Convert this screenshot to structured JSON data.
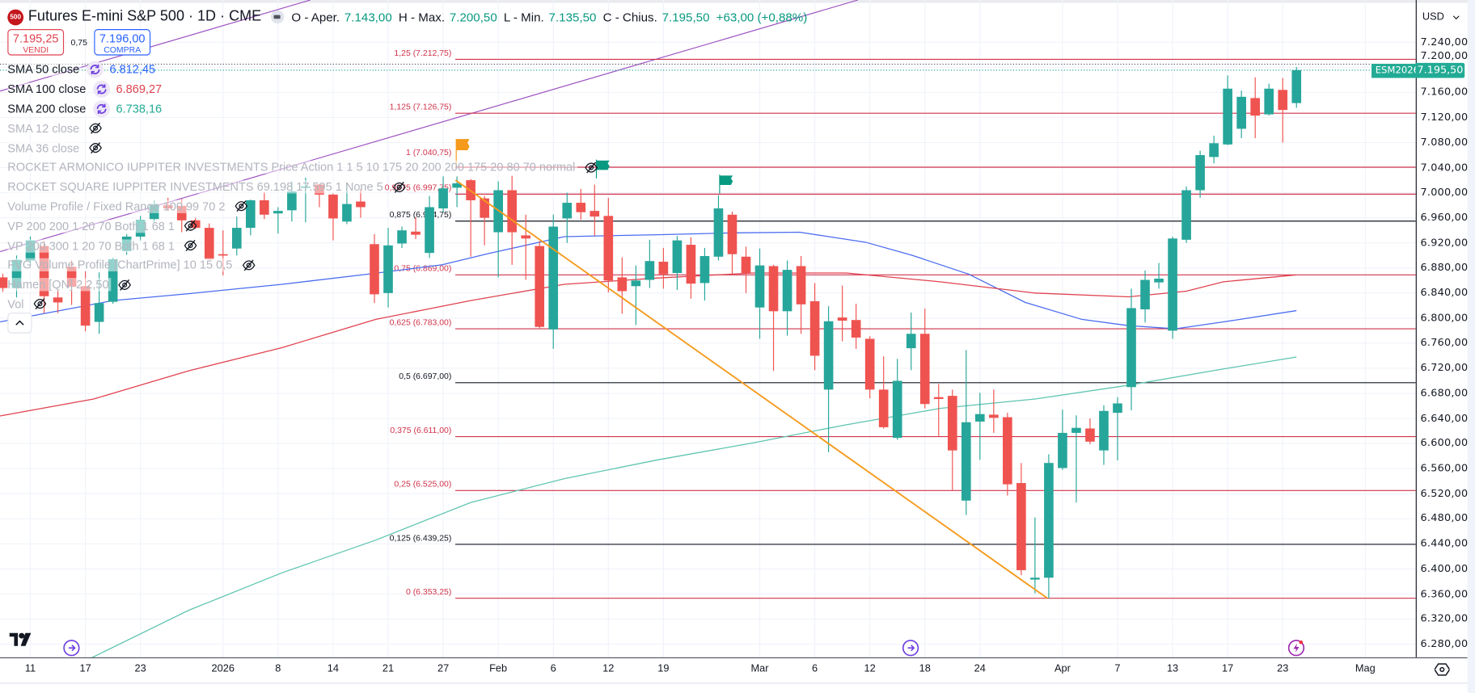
{
  "header": {
    "logo": "500",
    "title": "Futures E-mini S&P 500 · 1D · CME",
    "ohlc": [
      {
        "label": "O - Aper.",
        "value": "7.143,00"
      },
      {
        "label": "H - Max.",
        "value": "7.200,50"
      },
      {
        "label": "L - Min.",
        "value": "7.135,50"
      },
      {
        "label": "C - Chius.",
        "value": "7.195,50"
      }
    ],
    "change": "+63,00 (+0,88%)"
  },
  "trade": {
    "sell_price": "7.195,25",
    "sell_label": "VENDI",
    "spread": "0,75",
    "buy_price": "7.196,00",
    "buy_label": "COMPRA"
  },
  "indicators": [
    {
      "name": "SMA 50 close",
      "value": "6.812,45",
      "color": "#2962ff",
      "visible": true
    },
    {
      "name": "SMA 100 close",
      "value": "6.869,27",
      "color": "#e0424f",
      "visible": true
    },
    {
      "name": "SMA 200 close",
      "value": "6.738,16",
      "color": "#22ab94",
      "visible": true
    },
    {
      "name": "SMA 12 close",
      "visible": false
    },
    {
      "name": "SMA 36 close",
      "visible": false
    },
    {
      "name": "ROCKET ARMONICO IUPPITER INVESTMENTS Price Action 1 1 5 10 175 20 200 200 175 20 80 70 normal",
      "visible": false
    },
    {
      "name": "ROCKET SQUARE IUPPITER INVESTMENTS 69.198 17.595 1 None 5",
      "visible": false
    },
    {
      "name": "Volume Profile / Fixed Range 100 99 70 2",
      "visible": false
    },
    {
      "name": "VP 200 200 1 20 70 Both 1 68 1",
      "visible": false
    },
    {
      "name": "VP 200 300 1 20 70 Both 1 68 1",
      "visible": false
    },
    {
      "name": "FVG Volume Profile [ChartPrime] 10 15 0,5",
      "visible": false
    },
    {
      "name": "Hamen [QN] 2 2,50",
      "visible": false
    },
    {
      "name": "Vol",
      "visible": false
    }
  ],
  "price_axis": {
    "currency": "USD",
    "symbol_badge": "ESM2026",
    "last_price_label": "7.195,50",
    "ticks": [
      {
        "value": 7240,
        "label": "7.240,00"
      },
      {
        "value": 7200,
        "label": "7.200,00"
      },
      {
        "value": 7160,
        "label": "7.160,00"
      },
      {
        "value": 7120,
        "label": "7.120,00"
      },
      {
        "value": 7080,
        "label": "7.080,00"
      },
      {
        "value": 7040,
        "label": "7.040,00"
      },
      {
        "value": 7000,
        "label": "7.000,00"
      },
      {
        "value": 6960,
        "label": "6.960,00"
      },
      {
        "value": 6920,
        "label": "6.920,00"
      },
      {
        "value": 6880,
        "label": "6.880,00"
      },
      {
        "value": 6840,
        "label": "6.840,00"
      },
      {
        "value": 6800,
        "label": "6.800,00"
      },
      {
        "value": 6760,
        "label": "6.760,00"
      },
      {
        "value": 6720,
        "label": "6.720,00"
      },
      {
        "value": 6680,
        "label": "6.680,00"
      },
      {
        "value": 6640,
        "label": "6.640,00"
      },
      {
        "value": 6600,
        "label": "6.600,00"
      },
      {
        "value": 6560,
        "label": "6.560,00"
      },
      {
        "value": 6520,
        "label": "6.520,00"
      },
      {
        "value": 6480,
        "label": "6.480,00"
      },
      {
        "value": 6440,
        "label": "6.440,00"
      },
      {
        "value": 6400,
        "label": "6.400,00"
      },
      {
        "value": 6360,
        "label": "6.360,00"
      },
      {
        "value": 6320,
        "label": "6.320,00"
      },
      {
        "value": 6280,
        "label": "6.280,00"
      }
    ]
  },
  "time_axis": {
    "ticks": [
      {
        "label": "11",
        "idx": 2
      },
      {
        "label": "17",
        "idx": 6
      },
      {
        "label": "23",
        "idx": 10
      },
      {
        "label": "2026",
        "idx": 16
      },
      {
        "label": "8",
        "idx": 20
      },
      {
        "label": "14",
        "idx": 24
      },
      {
        "label": "21",
        "idx": 28
      },
      {
        "label": "27",
        "idx": 32
      },
      {
        "label": "Feb",
        "idx": 36
      },
      {
        "label": "6",
        "idx": 40
      },
      {
        "label": "12",
        "idx": 44
      },
      {
        "label": "19",
        "idx": 48
      },
      {
        "label": "Mar",
        "idx": 55
      },
      {
        "label": "6",
        "idx": 59
      },
      {
        "label": "12",
        "idx": 63
      },
      {
        "label": "18",
        "idx": 67
      },
      {
        "label": "24",
        "idx": 71
      },
      {
        "label": "Apr",
        "idx": 77
      },
      {
        "label": "7",
        "idx": 81
      },
      {
        "label": "13",
        "idx": 85
      },
      {
        "label": "17",
        "idx": 89
      },
      {
        "label": "23",
        "idx": 93
      },
      {
        "label": "Mag",
        "idx": 99
      }
    ]
  },
  "fib_levels": [
    {
      "ratio": "1,25",
      "price_label": "7.212,75",
      "price": 7212.75,
      "color": "#d1334b"
    },
    {
      "ratio": "1,125",
      "price_label": "7.126,75",
      "price": 7126.75,
      "color": "#d1334b"
    },
    {
      "ratio": "1",
      "price_label": "7.040,75",
      "price": 7040.75,
      "color": "#d1334b"
    },
    {
      "ratio": "0,9375",
      "price_label": "6.997,75",
      "price": 6997.75,
      "color": "#d1334b"
    },
    {
      "ratio": "0,875",
      "price_label": "6.954,75",
      "price": 6954.75,
      "color": "#131722"
    },
    {
      "ratio": "0,75",
      "price_label": "6.869,00",
      "price": 6869.0,
      "color": "#d1334b"
    },
    {
      "ratio": "0,625",
      "price_label": "6.783,00",
      "price": 6783.0,
      "color": "#d1334b"
    },
    {
      "ratio": "0,5",
      "price_label": "6.697,00",
      "price": 6697.0,
      "color": "#131722"
    },
    {
      "ratio": "0,375",
      "price_label": "6.611,00",
      "price": 6611.0,
      "color": "#d1334b"
    },
    {
      "ratio": "0,25",
      "price_label": "6.525,00",
      "price": 6525.0,
      "color": "#d1334b"
    },
    {
      "ratio": "0,125",
      "price_label": "6.439,25",
      "price": 6439.25,
      "color": "#131722"
    },
    {
      "ratio": "0",
      "price_label": "6.353,25",
      "price": 6353.25,
      "color": "#d1334b"
    }
  ],
  "colors": {
    "up": "#26a69a",
    "down": "#ef5350",
    "sma50": "#4a6cf0",
    "sma100": "#e0424f",
    "sma200": "#5fc4b0",
    "channel": "#9c4fc0",
    "trend": "#f59a1b",
    "grid": "#f0f3fa"
  },
  "icons": {
    "hidden": "eye-off-icon",
    "loading": "refresh-icon",
    "settings": "gear-icon",
    "event": "arrow-circle-icon",
    "earnings": "lightning-icon"
  },
  "chart_data": {
    "type": "candlestick",
    "symbol": "ESM2026",
    "ylim": [
      6260,
      7270
    ],
    "last_price": 7195.5,
    "candles_ohlc": [
      [
        6865,
        6871,
        6842,
        6848
      ],
      [
        6848,
        6900,
        6833,
        6893
      ],
      [
        6892,
        6930,
        6884,
        6924
      ],
      [
        6915,
        6923,
        6808,
        6835
      ],
      [
        6833,
        6844,
        6808,
        6825
      ],
      [
        6882,
        6892,
        6821,
        6850
      ],
      [
        6851,
        6875,
        6779,
        6788
      ],
      [
        6794,
        6873,
        6775,
        6824
      ],
      [
        6826,
        6896,
        6823,
        6894
      ],
      [
        6907,
        6934,
        6901,
        6930
      ],
      [
        6930,
        6963,
        6923,
        6957
      ],
      [
        6958,
        6988,
        6953,
        6981
      ],
      [
        6980,
        6992,
        6971,
        6975
      ],
      [
        6979,
        6990,
        6937,
        6956
      ],
      [
        6956,
        6960,
        6942,
        6944
      ],
      [
        6944,
        6951,
        6893,
        6894
      ],
      [
        6902,
        6940,
        6868,
        6900
      ],
      [
        6911,
        6962,
        6900,
        6944
      ],
      [
        6944,
        6989,
        6932,
        6988
      ],
      [
        6988,
        7001,
        6958,
        6965
      ],
      [
        6967,
        6977,
        6935,
        6971
      ],
      [
        6972,
        7018,
        6954,
        7002
      ],
      [
        7008,
        7024,
        6953,
        7010
      ],
      [
        7013,
        7014,
        6977,
        6997
      ],
      [
        6997,
        6999,
        6924,
        6959
      ],
      [
        6954,
        7016,
        6950,
        6982
      ],
      [
        6986,
        7006,
        6960,
        6977
      ],
      [
        6918,
        6934,
        6824,
        6838
      ],
      [
        6840,
        6944,
        6817,
        6916
      ],
      [
        6919,
        6946,
        6912,
        6940
      ],
      [
        6938,
        6961,
        6926,
        6933
      ],
      [
        6904,
        6995,
        6896,
        6977
      ],
      [
        6975,
        7026,
        6969,
        7007
      ],
      [
        7008,
        7026,
        6977,
        7015
      ],
      [
        7020,
        7022,
        6898,
        6988
      ],
      [
        6991,
        6995,
        6916,
        6960
      ],
      [
        6937,
        7018,
        6865,
        7004
      ],
      [
        7004,
        7027,
        6885,
        6937
      ],
      [
        6932,
        6965,
        6861,
        6927
      ],
      [
        6915,
        6923,
        6784,
        6786
      ],
      [
        6782,
        6965,
        6751,
        6946
      ],
      [
        6959,
        7000,
        6920,
        6984
      ],
      [
        6984,
        7006,
        6957,
        6969
      ],
      [
        6971,
        7013,
        6931,
        6962
      ],
      [
        6963,
        6992,
        6841,
        6860
      ],
      [
        6865,
        6897,
        6807,
        6843
      ],
      [
        6851,
        6884,
        6789,
        6860
      ],
      [
        6861,
        6925,
        6848,
        6891
      ],
      [
        6890,
        6912,
        6847,
        6870
      ],
      [
        6872,
        6931,
        6845,
        6924
      ],
      [
        6917,
        6929,
        6831,
        6855
      ],
      [
        6856,
        6912,
        6828,
        6899
      ],
      [
        6898,
        6996,
        6892,
        6975
      ],
      [
        6965,
        6970,
        6870,
        6902
      ],
      [
        6898,
        6914,
        6840,
        6872
      ],
      [
        6817,
        6911,
        6767,
        6884
      ],
      [
        6883,
        6885,
        6716,
        6811
      ],
      [
        6811,
        6892,
        6772,
        6877
      ],
      [
        6883,
        6899,
        6775,
        6822
      ],
      [
        6827,
        6856,
        6717,
        6740
      ],
      [
        6686,
        6819,
        6586,
        6795
      ],
      [
        6801,
        6852,
        6763,
        6796
      ],
      [
        6797,
        6823,
        6751,
        6769
      ],
      [
        6767,
        6771,
        6672,
        6686
      ],
      [
        6686,
        6739,
        6624,
        6626
      ],
      [
        6609,
        6735,
        6606,
        6700
      ],
      [
        6752,
        6809,
        6717,
        6775
      ],
      [
        6775,
        6815,
        6656,
        6663
      ],
      [
        6674,
        6695,
        6612,
        6671
      ],
      [
        6676,
        6686,
        6526,
        6589
      ],
      [
        6509,
        6749,
        6486,
        6634
      ],
      [
        6635,
        6681,
        6574,
        6647
      ],
      [
        6646,
        6686,
        6617,
        6641
      ],
      [
        6642,
        6649,
        6517,
        6535
      ],
      [
        6537,
        6569,
        6390,
        6398
      ],
      [
        6383,
        6482,
        6361,
        6386
      ],
      [
        6386,
        6583,
        6353,
        6569
      ],
      [
        6561,
        6654,
        6558,
        6617
      ],
      [
        6617,
        6645,
        6506,
        6625
      ],
      [
        6624,
        6640,
        6599,
        6603
      ],
      [
        6589,
        6661,
        6566,
        6652
      ],
      [
        6649,
        6674,
        6573,
        6664
      ],
      [
        6690,
        6847,
        6653,
        6816
      ],
      [
        6814,
        6876,
        6793,
        6861
      ],
      [
        6857,
        6888,
        6847,
        6863
      ],
      [
        6780,
        6930,
        6767,
        6927
      ],
      [
        6925,
        7010,
        6920,
        7004
      ],
      [
        7004,
        7067,
        6992,
        7060
      ],
      [
        7057,
        7091,
        7047,
        7079
      ],
      [
        7077,
        7187,
        7076,
        7166
      ],
      [
        7102,
        7163,
        7087,
        7153
      ],
      [
        7151,
        7184,
        7087,
        7123
      ],
      [
        7125,
        7174,
        7123,
        7166
      ],
      [
        7164,
        7183,
        7080,
        7132
      ],
      [
        7143,
        7200.5,
        7135.5,
        7195.5
      ]
    ],
    "sma50": [
      [
        -0.2,
        6794
      ],
      [
        8,
        6828
      ],
      [
        13.5,
        6839
      ],
      [
        20.3,
        6854
      ],
      [
        26.5,
        6870
      ],
      [
        31.9,
        6885
      ],
      [
        35.3,
        6903
      ],
      [
        40.8,
        6930
      ],
      [
        47.6,
        6933
      ],
      [
        53.1,
        6936
      ],
      [
        57.9,
        6937
      ],
      [
        62.7,
        6921
      ],
      [
        66.1,
        6900
      ],
      [
        70.2,
        6870
      ],
      [
        74.3,
        6825
      ],
      [
        78.4,
        6798
      ],
      [
        81.8,
        6788
      ],
      [
        85.2,
        6783
      ],
      [
        88.7,
        6794
      ],
      [
        94,
        6812
      ]
    ],
    "sma100": [
      [
        -0.2,
        6644
      ],
      [
        6.6,
        6671
      ],
      [
        13.5,
        6716
      ],
      [
        20.3,
        6753
      ],
      [
        27.1,
        6798
      ],
      [
        34,
        6828
      ],
      [
        40.8,
        6854
      ],
      [
        47.6,
        6864
      ],
      [
        54.5,
        6872
      ],
      [
        61.3,
        6872
      ],
      [
        68.1,
        6858
      ],
      [
        75,
        6840
      ],
      [
        81.8,
        6834
      ],
      [
        86,
        6843
      ],
      [
        88.7,
        6858
      ],
      [
        94,
        6869
      ]
    ],
    "sma200": [
      [
        4,
        6232
      ],
      [
        13.5,
        6334
      ],
      [
        20.3,
        6394
      ],
      [
        27.1,
        6446
      ],
      [
        34,
        6506
      ],
      [
        40.8,
        6544
      ],
      [
        47.6,
        6574
      ],
      [
        54.5,
        6601
      ],
      [
        61.3,
        6630
      ],
      [
        68.1,
        6656
      ],
      [
        75,
        6671
      ],
      [
        81.8,
        6693
      ],
      [
        88.7,
        6719
      ],
      [
        94,
        6738
      ]
    ],
    "trendline": [
      [
        32.9,
        7020
      ],
      [
        75.9,
        6353.25
      ]
    ]
  }
}
